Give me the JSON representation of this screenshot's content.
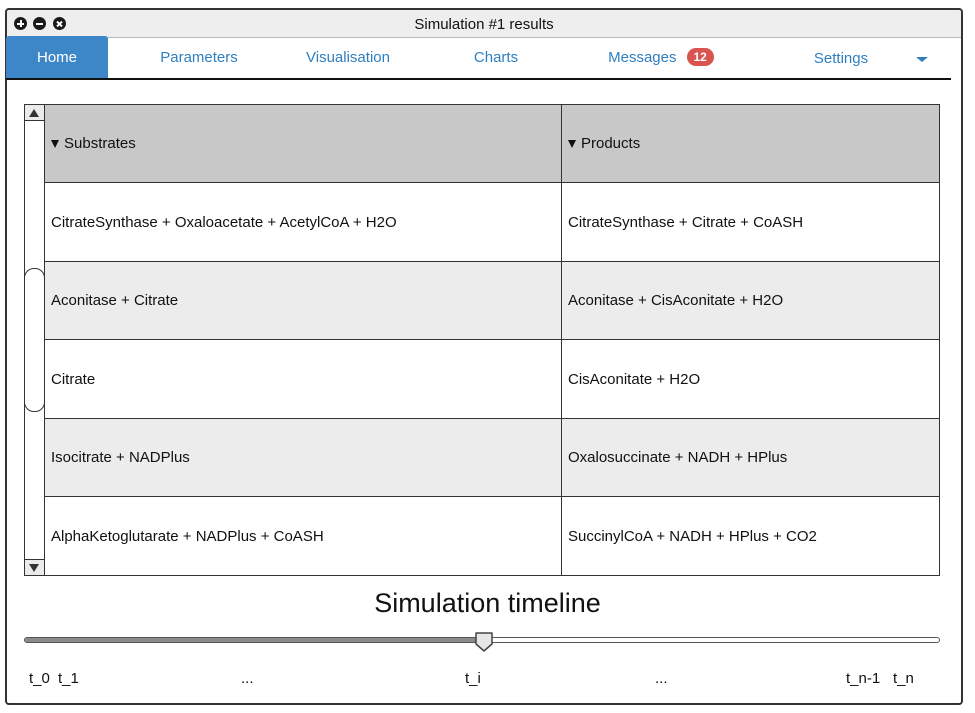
{
  "window": {
    "title": "Simulation #1 results"
  },
  "tabs": [
    {
      "label": "Home",
      "active": true
    },
    {
      "label": "Parameters",
      "active": false
    },
    {
      "label": "Visualisation",
      "active": false
    },
    {
      "label": "Charts",
      "active": false
    },
    {
      "label": "Messages",
      "active": false,
      "badge": "12"
    },
    {
      "label": "Settings",
      "active": false
    }
  ],
  "table": {
    "columns": [
      "Substrates",
      "Products"
    ],
    "rows": [
      {
        "substrates": "CitrateSynthase + Oxaloacetate + AcetylCoA + H2O",
        "products": "CitrateSynthase + Citrate + CoASH"
      },
      {
        "substrates": "Aconitase + Citrate",
        "products": "Aconitase + CisAconitate + H2O"
      },
      {
        "substrates": "Citrate",
        "products": "CisAconitate + H2O"
      },
      {
        "substrates": "Isocitrate + NADPlus",
        "products": "Oxalosuccinate + NADH + HPlus"
      },
      {
        "substrates": "AlphaKetoglutarate + NADPlus + CoASH",
        "products": "SuccinylCoA + NADH + HPlus + CO2"
      }
    ]
  },
  "timeline": {
    "title": "Simulation timeline",
    "position_fraction": 0.5,
    "labels": [
      "t_0",
      "t_1",
      "...",
      "t_i",
      "...",
      "t_n-1",
      "t_n"
    ]
  },
  "colors": {
    "accent": "#3d87c9",
    "link": "#2f7fc0",
    "badge": "#d9534f",
    "header_bg": "#c8c8c8",
    "alt_row_bg": "#ececec"
  }
}
